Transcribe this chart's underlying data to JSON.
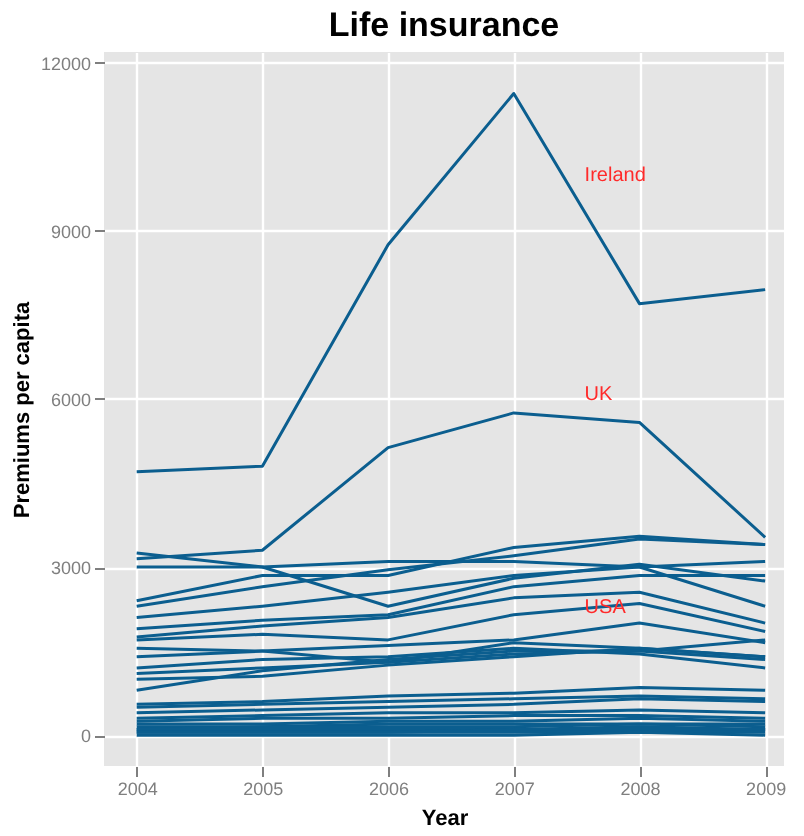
{
  "chart_data": {
    "type": "line",
    "title": "Life insurance",
    "xlabel": "Year",
    "ylabel": "Premiums per capita",
    "x": [
      2004,
      2005,
      2006,
      2007,
      2008,
      2009
    ],
    "xlim": [
      2003.74,
      2009.15
    ],
    "xticks": [
      2004,
      2005,
      2006,
      2007,
      2008,
      2009
    ],
    "ylim": [
      -550,
      12190
    ],
    "yticks": [
      0,
      3000,
      6000,
      9000,
      12000
    ],
    "grid": true,
    "legend": false,
    "marker": "none",
    "line_style": "solid",
    "series": [
      {
        "name": "Ireland",
        "color": "#0b5e8f",
        "values": [
          4700,
          4800,
          8750,
          11450,
          7700,
          7950
        ]
      },
      {
        "name": "UK",
        "color": "#0b5e8f",
        "values": [
          3150,
          3300,
          5130,
          5750,
          5580,
          3530
        ]
      },
      {
        "color": "#0b5e8f",
        "values": [
          3250,
          3000,
          2300,
          2800,
          3050,
          2750
        ]
      },
      {
        "color": "#0b5e8f",
        "values": [
          3000,
          3000,
          3100,
          3100,
          3000,
          2300
        ]
      },
      {
        "color": "#0b5e8f",
        "values": [
          2400,
          2850,
          2850,
          3350,
          3550,
          3400
        ]
      },
      {
        "color": "#0b5e8f",
        "values": [
          2300,
          2650,
          2950,
          3200,
          3500,
          3400
        ]
      },
      {
        "color": "#0b5e8f",
        "values": [
          2100,
          2300,
          2550,
          2850,
          3000,
          3100
        ]
      },
      {
        "color": "#0b5e8f",
        "values": [
          1900,
          2050,
          2150,
          2650,
          2850,
          2850
        ]
      },
      {
        "color": "#0b5e8f",
        "values": [
          1750,
          1950,
          2100,
          2450,
          2550,
          2000
        ]
      },
      {
        "color": "#0b5e8f",
        "values": [
          1700,
          1800,
          1700,
          2150,
          2350,
          1850
        ]
      },
      {
        "name": "USA",
        "color": "#0b5e8f",
        "values": [
          1400,
          1500,
          1600,
          1700,
          2000,
          1650
        ]
      },
      {
        "color": "#0b5e8f",
        "values": [
          1550,
          1500,
          1300,
          1650,
          1550,
          1400
        ]
      },
      {
        "color": "#0b5e8f",
        "values": [
          1200,
          1350,
          1400,
          1550,
          1450,
          1200
        ]
      },
      {
        "color": "#0b5e8f",
        "values": [
          1000,
          1050,
          1250,
          1400,
          1550,
          1400
        ]
      },
      {
        "color": "#0b5e8f",
        "values": [
          800,
          1150,
          1350,
          1500,
          1500,
          1350
        ]
      },
      {
        "color": "#0b5e8f",
        "values": [
          1100,
          1200,
          1300,
          1450,
          1500,
          1700
        ]
      },
      {
        "color": "#0b5e8f",
        "values": [
          550,
          600,
          700,
          750,
          850,
          800
        ]
      },
      {
        "color": "#0b5e8f",
        "values": [
          500,
          550,
          600,
          650,
          700,
          650
        ]
      },
      {
        "color": "#0b5e8f",
        "values": [
          400,
          450,
          500,
          550,
          650,
          600
        ]
      },
      {
        "color": "#0b5e8f",
        "values": [
          300,
          350,
          400,
          400,
          450,
          400
        ]
      },
      {
        "color": "#0b5e8f",
        "values": [
          250,
          300,
          300,
          350,
          350,
          300
        ]
      },
      {
        "color": "#0b5e8f",
        "values": [
          200,
          200,
          250,
          250,
          300,
          250
        ]
      },
      {
        "color": "#0b5e8f",
        "values": [
          150,
          150,
          200,
          200,
          200,
          200
        ]
      },
      {
        "color": "#0b5e8f",
        "values": [
          100,
          150,
          150,
          150,
          200,
          150
        ]
      },
      {
        "color": "#0b5e8f",
        "values": [
          100,
          100,
          100,
          100,
          150,
          100
        ]
      },
      {
        "color": "#0b5e8f",
        "values": [
          50,
          50,
          50,
          100,
          100,
          100
        ]
      },
      {
        "color": "#0b5e8f",
        "values": [
          50,
          50,
          50,
          50,
          50,
          50
        ]
      },
      {
        "color": "#0b5e8f",
        "values": [
          0,
          0,
          0,
          0,
          50,
          0
        ]
      }
    ]
  }
}
